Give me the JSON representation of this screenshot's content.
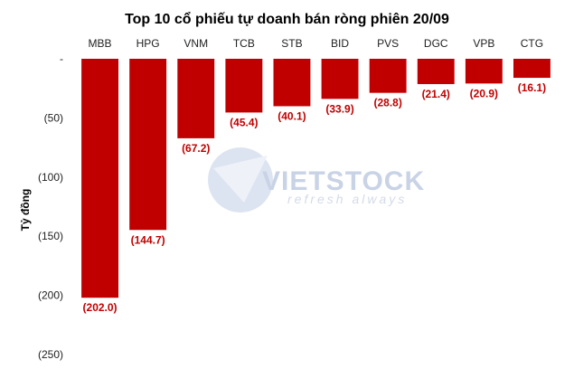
{
  "watermark": {
    "brand": "VIETSTOCK",
    "tagline": "refresh always"
  },
  "chart_data": {
    "type": "bar",
    "title": "Top 10 cổ phiếu tự doanh bán ròng phiên 20/09",
    "ylabel": "Tỷ đồng",
    "categories": [
      "MBB",
      "HPG",
      "VNM",
      "TCB",
      "STB",
      "BID",
      "PVS",
      "DGC",
      "VPB",
      "CTG"
    ],
    "values": [
      -202.0,
      -144.7,
      -67.2,
      -45.4,
      -40.1,
      -33.9,
      -28.8,
      -21.4,
      -20.9,
      -16.1
    ],
    "value_labels": [
      "(202.0)",
      "(144.7)",
      "(67.2)",
      "(45.4)",
      "(40.1)",
      "(33.9)",
      "(28.8)",
      "(21.4)",
      "(20.9)",
      "(16.1)"
    ],
    "yticks": [
      0,
      -50,
      -100,
      -150,
      -200,
      -250
    ],
    "ytick_labels": [
      "-",
      "(50)",
      "(100)",
      "(150)",
      "(200)",
      "(250)"
    ],
    "ylim": [
      -250,
      0
    ],
    "bar_color": "#c00000",
    "label_color": "#c00000",
    "grid": false
  }
}
